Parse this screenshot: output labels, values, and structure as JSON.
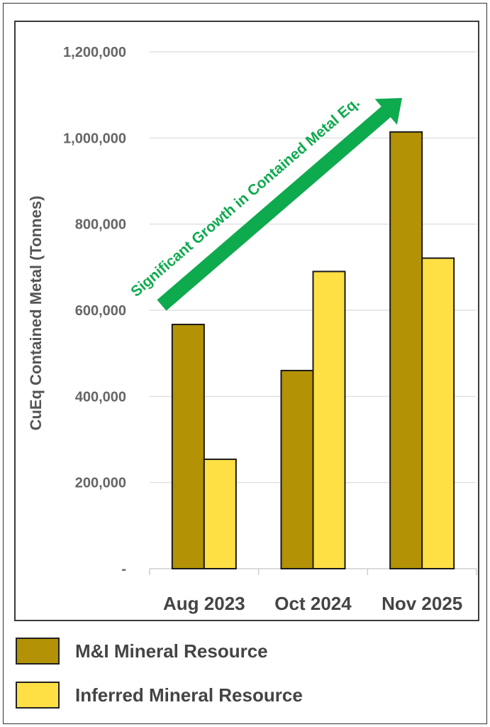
{
  "chart_data": {
    "type": "bar",
    "categories": [
      "Aug 2023",
      "Oct 2024",
      "Nov 2025"
    ],
    "series": [
      {
        "name": "M&I Mineral Resource",
        "values": [
          567000,
          460000,
          1014000
        ],
        "color": "#b39205"
      },
      {
        "name": "Inferred Mineral Resource",
        "values": [
          254000,
          690000,
          721000
        ],
        "color": "#ffe044"
      }
    ],
    "ylabel": "CuEq Contained Metal (Tonnes)",
    "xlabel": "",
    "ylim": [
      0,
      1200000
    ],
    "yticks": [
      0,
      200000,
      400000,
      600000,
      800000,
      1000000,
      1200000
    ],
    "ytick_labels": [
      "-",
      "200,000",
      "400,000",
      "600,000",
      "800,000",
      "1,000,000",
      "1,200,000"
    ],
    "grid": true,
    "legend_position": "bottom",
    "annotation": {
      "text": "Significant Growth in Contained Metal Eq.",
      "color": "#0eaa4e"
    }
  }
}
